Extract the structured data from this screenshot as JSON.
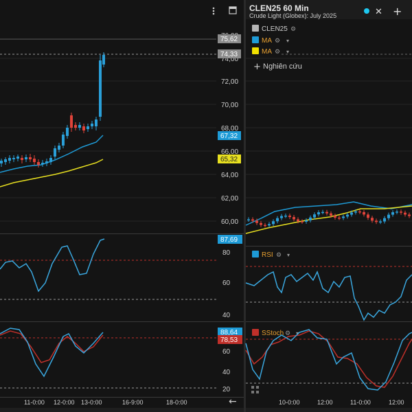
{
  "left_panel": {
    "price_axis_labels": [
      "76,00",
      "74,00",
      "72,00",
      "70,00",
      "68,00",
      "66,00",
      "64,00",
      "62,00",
      "60,00"
    ],
    "price_tags": {
      "last_top": "75,62",
      "dashed": "74,33",
      "ma1": "67,32",
      "ma2": "65,32"
    },
    "rsi_value_tag": "87,69",
    "rsi_axis_labels": [
      "80",
      "60",
      "40"
    ],
    "stoch_tags": [
      "88,64",
      "78,53"
    ],
    "stoch_axis_labels": [
      "60",
      "40",
      "20"
    ],
    "time_labels": [
      "11-0:00",
      "12-0:00",
      "13-0:00",
      "16-9:00",
      "18-0:00"
    ],
    "arrow_icon": "arrow-left-icon",
    "menu_icon": "more-vert-icon",
    "window_icon": "window-icon"
  },
  "right_panel": {
    "title": "CLEN25 60 Min",
    "subtitle": "Crude Light (Globex): July 2025",
    "close_icon": "close-icon",
    "add_icon": "plus-icon",
    "status_dot_color": "#1ec8f0",
    "legend": [
      {
        "label": "CLEN25",
        "color": "#b5b5b5"
      },
      {
        "label": "MA",
        "color": "#1e9bd7"
      },
      {
        "label": "MA",
        "color": "#f0e000"
      }
    ],
    "add_study_label": "Nghiên cứu",
    "rsi_label": "RSI",
    "stoch_label": "SStoch",
    "time_labels": [
      "10-0:00",
      "12:00",
      "11-0:00",
      "12:00"
    ]
  },
  "colors": {
    "up": "#2a9fd8",
    "down": "#e0433a",
    "ma_blue": "#1e9bd7",
    "ma_yellow": "#e8e020",
    "rsi_line": "#3aa8e0",
    "stoch_red": "#c0302a"
  }
}
